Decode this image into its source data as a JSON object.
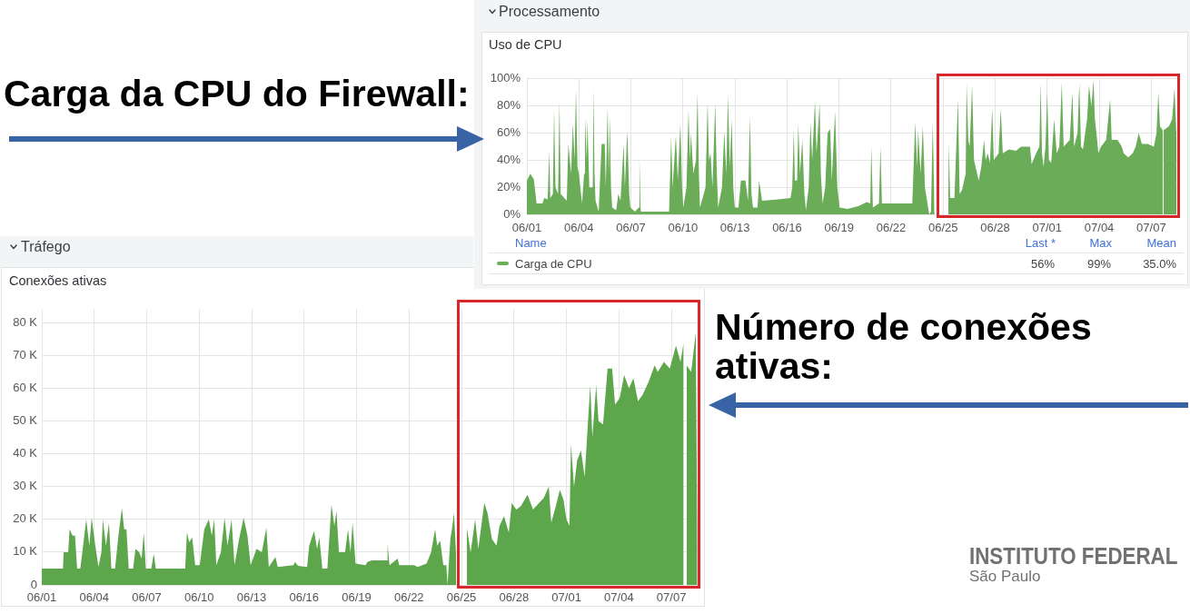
{
  "chart_data": [
    {
      "type": "area",
      "title": "Processamento",
      "subtitle": "Uso de CPU",
      "x": [
        "--06-01T00:00",
        "--06-01T04:48",
        "--06-01T09:36",
        "--06-01T13:26",
        "--06-01T21:36",
        "--06-02T00:00",
        "--06-02T04:48",
        "--06-02T06:58",
        "--06-02T08:24",
        "--06-02T12:00",
        "--06-02T13:41",
        "--06-02T15:36",
        "--06-02T19:12",
        "--06-02T21:07",
        "--06-02T22:48",
        "--06-03T07:12",
        "--06-03T09:22",
        "--06-03T13:12",
        "--06-03T15:36",
        "--06-03T18:00",
        "--06-03T19:55",
        "--06-03T22:05",
        "--06-04T00:00",
        "--06-04T04:19",
        "--06-04T07:12",
        "--06-04T08:24",
        "--06-04T10:48",
        "--06-04T11:46",
        "--06-04T14:24",
        "--06-04T19:12",
        "--06-04T20:10",
        "--06-04T21:36",
        "--06-04T23:02",
        "--06-05T03:22",
        "--06-05T07:26",
        "--06-05T11:46",
        "--06-05T13:12",
        "--06-05T15:50",
        "--06-05T17:17",
        "--06-05T18:43",
        "--06-05T20:24",
        "--06-05T22:05",
        "--06-06T03:36",
        "--06-06T06:29",
        "--06-06T09:36",
        "--06-06T13:55",
        "--06-06T15:36",
        "--06-06T18:58",
        "--06-06T21:36",
        "--06-06T23:17",
        "--06-07T05:31",
        "--06-07T10:48",
        "--06-07T11:46",
        "--06-07T13:12",
        "--06-07T13:55",
        "--06-09T04:48",
        "--06-09T07:41",
        "--06-09T09:36",
        "--06-09T14:10",
        "--06-09T16:48",
        "--06-09T20:24",
        "--06-09T22:48",
        "--06-10T00:29",
        "--06-10T04:48",
        "--06-10T07:41",
        "--06-10T09:36",
        "--06-10T11:02",
        "--06-10T14:24",
        "--06-10T18:00",
        "--06-10T20:10",
        "--06-10T22:05",
        "--06-10T23:31",
        "--06-11T07:12",
        "--06-11T10:05",
        "--06-11T12:00",
        "--06-11T14:10",
        "--06-11T16:48",
        "--06-11T20:38",
        "--06-11T22:48",
        "--06-12T00:43",
        "--06-12T06:00",
        "--06-12T09:07",
        "--06-12T12:00",
        "--06-12T14:10",
        "--06-12T16:48",
        "--06-12T19:26",
        "--06-12T21:36",
        "--06-12T23:46",
        "--06-13T04:48",
        "--06-13T08:10",
        "--06-13T14:24",
        "--06-13T18:00",
        "--06-13T20:38",
        "--06-13T22:48",
        "--06-14T00:58",
        "--06-14T07:12",
        "--06-14T09:22",
        "--06-14T13:26",
        "--06-15T12:00",
        "--06-16T04:48",
        "--06-16T07:12",
        "--06-16T09:22",
        "--06-16T10:48",
        "--06-16T13:55",
        "--06-16T15:36",
        "--06-16T18:00",
        "--06-16T21:07",
        "--06-17T00:00",
        "--06-17T02:10",
        "--06-17T06:00",
        "--06-17T08:24",
        "--06-17T10:48",
        "--06-17T14:38",
        "--06-17T16:48",
        "--06-17T21:07",
        "--06-17T22:48",
        "--06-18T01:12",
        "--06-18T04:48",
        "--06-18T08:10",
        "--06-18T11:46",
        "--06-18T13:55",
        "--06-18T18:29",
        "--06-18T21:36",
        "--06-19T00:43",
        "--06-19T12:00",
        "--06-20T02:24",
        "--06-20T14:24",
        "--06-20T19:12",
        "--06-20T20:38",
        "--06-20T22:48",
        "--06-21T07:12",
        "--06-21T09:22",
        "--06-21T11:17",
        "--06-22T12:00",
        "--06-23T05:17",
        "--06-23T09:22",
        "--06-23T12:00",
        "--06-23T13:26",
        "--06-23T16:48",
        "--06-23T19:55",
        "--06-23T22:48",
        "--06-24T04:05",
        "--06-24T05:17",
        "--06-24T07:12",
        "--06-24T09:36",
        "--06-24T12:00",
        "--06-24T14:24",
        "--06-25T07:12",
        "--06-25T07:55",
        "--06-25T09:36",
        "--06-25T15:36",
        "--06-25T20:38",
        "--06-25T22:48",
        "--06-26T02:10",
        "--06-26T07:12",
        "--06-26T08:24",
        "--06-26T10:48",
        "--06-26T12:43",
        "--06-26T16:05",
        "--06-26T18:43",
        "--06-27T01:12",
        "--06-27T04:48",
        "--06-27T08:38",
        "--06-27T10:48",
        "--06-27T13:41",
        "--06-27T16:48",
        "--06-27T19:55",
        "--06-27T22:05",
        "--06-28T04:48",
        "--06-28T07:41",
        "--06-28T10:34",
        "--06-28T18:58",
        "--06-29T04:48",
        "--06-29T11:46",
        "--06-30T00:14",
        "--06-30T02:24",
        "--06-30T08:38",
        "--06-30T13:12",
        "--06-30T14:53",
        "--06-30T16:48",
        "--06-30T18:58",
        "--06-30T21:36",
        "--07-01T00:00",
        "--07-01T02:24",
        "--07-01T05:31",
        "--07-01T09:36",
        "--07-01T13:12",
        "--07-01T16:48",
        "--07-01T20:10",
        "--07-01T22:48",
        "--07-02T07:12",
        "--07-02T10:48",
        "--07-02T13:12",
        "--07-02T18:00",
        "--07-02T20:24",
        "--07-02T22:48",
        "--07-03T01:26",
        "--07-03T07:12",
        "--07-03T09:50",
        "--07-03T13:12",
        "--07-03T16:05",
        "--07-03T18:00",
        "--07-03T20:10",
        "--07-03T22:48",
        "--07-04T02:24",
        "--07-04T09:36",
        "--07-04T15:07",
        "--07-04T17:17",
        "--07-05T01:26",
        "--07-05T07:12",
        "--07-05T09:50",
        "--07-05T16:05",
        "--07-05T22:19",
        "--07-06T02:24",
        "--07-06T06:43",
        "--07-06T11:02",
        "--07-06T19:12",
        "--07-07T03:36",
        "--07-07T07:12",
        "--07-07T09:50",
        "--07-07T12:00",
        "--07-07T15:50",
        "--07-07T16:19",
        "--07-07T16:48",
        "--07-08T00:29",
        "--07-08T04:48",
        "--07-08T08:10",
        "--07-08T11:02"
      ],
      "series": [
        {
          "name": "Carga de CPU",
          "color": "#6aac58",
          "values": [
            25,
            30,
            26,
            8,
            8,
            12,
            11,
            47,
            12,
            15,
            77,
            20,
            15,
            84,
            15,
            10,
            52,
            30,
            67,
            40,
            92,
            35,
            30,
            8,
            30,
            72,
            40,
            70,
            20,
            20,
            93,
            30,
            10,
            2,
            52,
            52,
            20,
            80,
            30,
            72,
            20,
            5,
            3,
            15,
            10,
            52,
            20,
            62,
            15,
            5,
            2,
            5,
            43,
            5,
            2,
            2,
            58,
            20,
            58,
            25,
            67,
            20,
            5,
            20,
            77,
            40,
            60,
            30,
            40,
            90,
            30,
            5,
            20,
            83,
            40,
            45,
            20,
            82,
            30,
            5,
            20,
            61,
            30,
            88,
            35,
            70,
            20,
            5,
            5,
            25,
            25,
            10,
            72,
            15,
            5,
            5,
            25,
            10,
            11,
            12,
            20,
            62,
            25,
            25,
            67,
            30,
            55,
            15,
            3,
            20,
            68,
            40,
            84,
            45,
            82,
            30,
            8,
            20,
            60,
            63,
            25,
            76,
            20,
            5,
            4,
            6,
            9,
            8,
            50,
            5,
            8,
            50,
            8,
            8,
            8,
            68,
            35,
            62,
            30,
            65,
            20,
            2,
            0,
            2,
            68,
            3,
            null,
            15,
            52,
            12,
            12,
            85,
            15,
            18,
            30,
            97,
            55,
            50,
            95,
            40,
            25,
            35,
            55,
            40,
            45,
            38,
            78,
            40,
            45,
            78,
            45,
            48,
            47,
            50,
            50,
            37,
            45,
            50,
            97,
            45,
            35,
            50,
            90,
            40,
            38,
            70,
            45,
            50,
            97,
            50,
            55,
            90,
            50,
            60,
            97,
            50,
            48,
            70,
            95,
            80,
            99,
            70,
            60,
            45,
            50,
            55,
            85,
            55,
            55,
            50,
            45,
            42,
            45,
            50,
            60,
            52,
            52,
            50,
            60,
            90,
            65,
            62,
            null,
            62,
            65,
            70,
            93,
            56
          ]
        }
      ],
      "xlim": [
        "--06-01",
        "--07-08T12:00"
      ],
      "xticks": [
        {
          "value": "--06-01",
          "label": "06/01"
        },
        {
          "value": "--06-04",
          "label": "06/04"
        },
        {
          "value": "--06-07",
          "label": "06/07"
        },
        {
          "value": "--06-10",
          "label": "06/10"
        },
        {
          "value": "--06-13",
          "label": "06/13"
        },
        {
          "value": "--06-16",
          "label": "06/16"
        },
        {
          "value": "--06-19",
          "label": "06/19"
        },
        {
          "value": "--06-22",
          "label": "06/22"
        },
        {
          "value": "--06-25",
          "label": "06/25"
        },
        {
          "value": "--06-28",
          "label": "06/28"
        },
        {
          "value": "--07-01",
          "label": "07/01"
        },
        {
          "value": "--07-04",
          "label": "07/04"
        },
        {
          "value": "--07-07",
          "label": "07/07"
        }
      ],
      "ylim": [
        0,
        100
      ],
      "yticks": [
        {
          "value": 0,
          "label": "0%"
        },
        {
          "value": 20,
          "label": "20%"
        },
        {
          "value": 40,
          "label": "40%"
        },
        {
          "value": 60,
          "label": "60%"
        },
        {
          "value": 80,
          "label": "80%"
        },
        {
          "value": 100,
          "label": "100%"
        }
      ],
      "grid": true,
      "legend": "bottom",
      "legend_title": "Name",
      "annotations": [
        "Carga da CPU do Firewall:",
        "Last *",
        "Max",
        "Mean",
        "56%",
        "99%",
        "35.0%"
      ]
    },
    {
      "type": "area",
      "title": "Tráfego",
      "subtitle": "Conexões ativas",
      "x": [
        "--06-01T00:00",
        "--06-02T05:02",
        "--06-02T06:00",
        "--06-02T12:14",
        "--06-02T14:10",
        "--06-02T18:14",
        "--06-02T21:36",
        "--06-03T00:29",
        "--06-03T04:48",
        "--06-03T07:41",
        "--06-03T12:58",
        "--06-03T17:17",
        "--06-03T20:24",
        "--06-04T01:26",
        "--06-04T05:46",
        "--06-04T09:50",
        "--06-04T11:46",
        "--06-04T16:05",
        "--06-04T20:10",
        "--06-04T23:31",
        "--06-05T04:34",
        "--06-05T08:38",
        "--06-05T13:55",
        "--06-05T17:02",
        "--06-05T20:10",
        "--06-05T23:17",
        "--06-06T05:17",
        "--06-06T08:38",
        "--06-06T13:41",
        "--06-06T17:02",
        "--06-06T19:55",
        "--06-06T22:48",
        "--06-07T06:14",
        "--06-07T09:36",
        "--06-07T12:29",
        "--06-09T04:48",
        "--06-09T07:12",
        "--06-09T10:19",
        "--06-09T14:24",
        "--06-09T18:29",
        "--06-10T00:43",
        "--06-10T06:58",
        "--06-10T13:12",
        "--06-10T17:17",
        "--06-10T20:38",
        "--06-10T23:31",
        "--06-11T05:46",
        "--06-11T10:48",
        "--06-11T14:53",
        "--06-11T20:24",
        "--06-12T00:29",
        "--06-12T06:43",
        "--06-12T12:58",
        "--06-12T18:14",
        "--06-12T22:34",
        "--06-13T06:43",
        "--06-13T13:55",
        "--06-13T20:10",
        "--06-13T23:31",
        "--06-14T08:38",
        "--06-14T11:46",
        "--06-15T09:22",
        "--06-15T11:31",
        "--06-15T15:36",
        "--06-16T04:05",
        "--06-16T06:58",
        "--06-16T13:41",
        "--06-16T17:46",
        "--06-16T20:53",
        "--06-17T00:58",
        "--06-17T07:55",
        "--06-17T13:26",
        "--06-17T17:31",
        "--06-17T20:24",
        "--06-17T23:46",
        "--06-18T08:10",
        "--06-18T12:14",
        "--06-18T15:36",
        "--06-18T18:29",
        "--06-18T22:34",
        "--06-19T12:29",
        "--06-19T14:38",
        "--06-19T20:53",
        "--06-20T17:46",
        "--06-20T18:29",
        "--06-20T21:07",
        "--06-21T08:24",
        "--06-21T10:19",
        "--06-22T07:12",
        "--06-22T11:31",
        "--06-23T00:00",
        "--06-23T06:14",
        "--06-23T11:46",
        "--06-23T14:38",
        "--06-23T18:43",
        "--06-23T23:02",
        "--06-24T03:07",
        "--06-24T04:48",
        "--06-24T08:38",
        "--06-24T10:48",
        "--06-24T13:41",
        "--06-24T16:48",
        "--06-24T17:46",
        "--06-25T07:12",
        "--06-25T12:29",
        "--06-25T18:43",
        "--06-25T23:02",
        "--06-26T07:12",
        "--06-26T11:31",
        "--06-26T17:46",
        "--06-27T00:00",
        "--06-27T04:05",
        "--06-27T10:19",
        "--06-27T16:48",
        "--06-27T20:53",
        "--06-28T03:07",
        "--06-28T09:22",
        "--06-28T18:29",
        "--06-29T02:10",
        "--06-29T10:19",
        "--06-29T16:48",
        "--06-29T23:46",
        "--06-30T03:07",
        "--06-30T09:22",
        "--06-30T14:53",
        "--06-30T19:55",
        "--07-01T00:00",
        "--07-01T04:05",
        "--07-01T06:14",
        "--07-01T10:19",
        "--07-01T14:38",
        "--07-01T19:55",
        "--07-02T00:58",
        "--07-02T08:38",
        "--07-02T11:31",
        "--07-02T16:48",
        "--07-02T19:55",
        "--07-03T02:10",
        "--07-03T08:24",
        "--07-03T14:38",
        "--07-03T18:43",
        "--07-04T00:58",
        "--07-04T07:12",
        "--07-04T13:41",
        "--07-04T19:55",
        "--07-05T02:10",
        "--07-05T08:24",
        "--07-05T16:48",
        "--07-06T00:58",
        "--07-06T05:17",
        "--07-06T13:41",
        "--07-06T21:50",
        "--07-07T06:14",
        "--07-07T12:29",
        "--07-07T16:48",
        "--07-07T18:00",
        "--07-07T20:53",
        "--07-08T03:07",
        "--07-08T09:22",
        "--07-08T11:31"
      ],
      "values": [
        5,
        5,
        10,
        10,
        17,
        15,
        15,
        5,
        5,
        10,
        20,
        12,
        20.5,
        12,
        5.5,
        10,
        20,
        12,
        19,
        5,
        5,
        14,
        23.5,
        17,
        17,
        5,
        5,
        11,
        10,
        8,
        16,
        5,
        5,
        9.5,
        5,
        5,
        16,
        13,
        14.5,
        6,
        6,
        17,
        20,
        15,
        20,
        6,
        10,
        20.5,
        12,
        20,
        6,
        14,
        20.5,
        15,
        6,
        11,
        10,
        17.5,
        5.5,
        8.5,
        5.5,
        6,
        7,
        5.8,
        5.5,
        12,
        16.5,
        11,
        14.5,
        5,
        5,
        24.5,
        18,
        22.5,
        10,
        10,
        17,
        10,
        19,
        6.5,
        6,
        7,
        7.5,
        7.5,
        12.5,
        6,
        8,
        6,
        6,
        5.5,
        6.5,
        10,
        17,
        12,
        13.5,
        6,
        6,
        0,
        14,
        17,
        22,
        8,
        null,
        17.5,
        10,
        20,
        11,
        25,
        22,
        14,
        12,
        18,
        21,
        16,
        25,
        23,
        24,
        27.5,
        23,
        25,
        26.5,
        30,
        19,
        24,
        29,
        26,
        20,
        18,
        43,
        30,
        38,
        41,
        33,
        61,
        45,
        61,
        50,
        49,
        66,
        66,
        55,
        57,
        64,
        60,
        63,
        56,
        58,
        62,
        67,
        65,
        68,
        66,
        73,
        68,
        74,
        null,
        67,
        65,
        77,
        15
      ],
      "color": "#5da64c",
      "xlim": [
        "--06-01",
        "--07-08T12:00"
      ],
      "xticks": [
        {
          "value": "--06-01",
          "label": "06/01"
        },
        {
          "value": "--06-04",
          "label": "06/04"
        },
        {
          "value": "--06-07",
          "label": "06/07"
        },
        {
          "value": "--06-10",
          "label": "06/10"
        },
        {
          "value": "--06-13",
          "label": "06/13"
        },
        {
          "value": "--06-16",
          "label": "06/16"
        },
        {
          "value": "--06-19",
          "label": "06/19"
        },
        {
          "value": "--06-22",
          "label": "06/22"
        },
        {
          "value": "--06-25",
          "label": "06/25"
        },
        {
          "value": "--06-28",
          "label": "06/28"
        },
        {
          "value": "--07-01",
          "label": "07/01"
        },
        {
          "value": "--07-04",
          "label": "07/04"
        },
        {
          "value": "--07-07",
          "label": "07/07"
        }
      ],
      "ylim": [
        0,
        84
      ],
      "yticks": [
        0,
        {
          "value": 10,
          "label": "10 K"
        },
        {
          "value": 20,
          "label": "20 K"
        },
        {
          "value": 30,
          "label": "30 K"
        },
        {
          "value": 40,
          "label": "40 K"
        },
        {
          "value": 50,
          "label": "50 K"
        },
        {
          "value": 60,
          "label": "60 K"
        },
        {
          "value": 70,
          "label": "70 K"
        },
        {
          "value": 80,
          "label": "80 K"
        }
      ],
      "grid": true,
      "annotations": [
        "Número de conexões ativas:",
        "INSTITUTO FEDERAL",
        "São Paulo"
      ]
    }
  ]
}
